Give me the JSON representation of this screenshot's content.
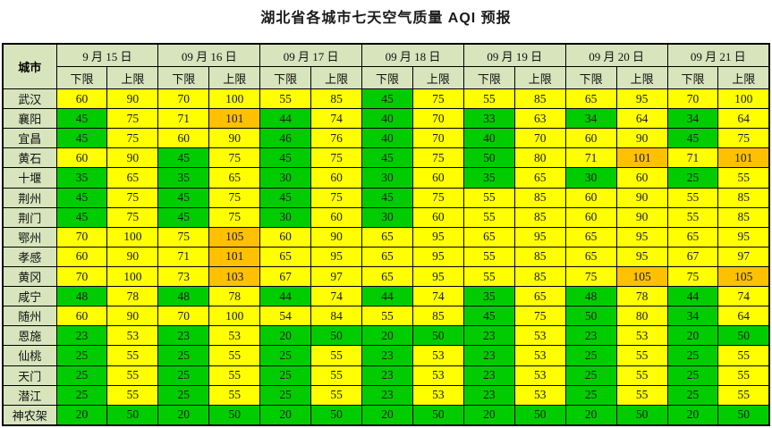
{
  "title": "湖北省各城市七天空气质量 AQI 预报",
  "table": {
    "corner_header": "城市",
    "date_headers": [
      "9 月 15 日",
      "09 月 16 日",
      "09 月 17 日",
      "09 月 18 日",
      "09 月 19 日",
      "09 月 20 日",
      "09 月 21 日"
    ],
    "sub_headers": [
      "下限",
      "上限"
    ],
    "rows": [
      {
        "city": "武汉",
        "values": [
          60,
          90,
          70,
          100,
          55,
          85,
          45,
          75,
          55,
          85,
          65,
          95,
          70,
          100
        ]
      },
      {
        "city": "襄阳",
        "values": [
          45,
          75,
          71,
          101,
          44,
          74,
          40,
          70,
          33,
          63,
          34,
          64,
          34,
          64
        ]
      },
      {
        "city": "宜昌",
        "values": [
          45,
          75,
          60,
          90,
          46,
          76,
          40,
          70,
          40,
          70,
          60,
          90,
          45,
          75
        ]
      },
      {
        "city": "黄石",
        "values": [
          60,
          90,
          45,
          75,
          45,
          75,
          45,
          75,
          50,
          80,
          71,
          101,
          71,
          101
        ]
      },
      {
        "city": "十堰",
        "values": [
          35,
          65,
          35,
          65,
          30,
          60,
          30,
          60,
          35,
          65,
          30,
          60,
          25,
          55
        ]
      },
      {
        "city": "荆州",
        "values": [
          45,
          75,
          45,
          75,
          45,
          75,
          45,
          75,
          55,
          85,
          60,
          90,
          55,
          85
        ]
      },
      {
        "city": "荆门",
        "values": [
          45,
          75,
          45,
          75,
          30,
          60,
          30,
          60,
          55,
          85,
          60,
          90,
          55,
          85
        ]
      },
      {
        "city": "鄂州",
        "values": [
          70,
          100,
          75,
          105,
          60,
          90,
          65,
          95,
          65,
          95,
          65,
          95,
          65,
          95
        ]
      },
      {
        "city": "孝感",
        "values": [
          60,
          90,
          71,
          101,
          65,
          95,
          65,
          95,
          55,
          85,
          65,
          95,
          67,
          97
        ]
      },
      {
        "city": "黄冈",
        "values": [
          70,
          100,
          73,
          103,
          67,
          97,
          65,
          95,
          55,
          85,
          75,
          105,
          75,
          105
        ]
      },
      {
        "city": "咸宁",
        "values": [
          48,
          78,
          48,
          78,
          44,
          74,
          44,
          74,
          35,
          65,
          48,
          78,
          44,
          74
        ]
      },
      {
        "city": "随州",
        "values": [
          60,
          90,
          70,
          100,
          54,
          84,
          55,
          85,
          45,
          75,
          50,
          80,
          34,
          64
        ]
      },
      {
        "city": "恩施",
        "values": [
          23,
          53,
          23,
          53,
          20,
          50,
          20,
          50,
          23,
          53,
          23,
          53,
          20,
          50
        ]
      },
      {
        "city": "仙桃",
        "values": [
          25,
          55,
          25,
          55,
          25,
          55,
          23,
          53,
          23,
          53,
          25,
          55,
          25,
          55
        ]
      },
      {
        "city": "天门",
        "values": [
          25,
          55,
          25,
          55,
          25,
          55,
          23,
          53,
          23,
          53,
          25,
          55,
          25,
          55
        ]
      },
      {
        "city": "潜江",
        "values": [
          25,
          55,
          25,
          55,
          25,
          55,
          23,
          53,
          23,
          53,
          25,
          55,
          25,
          55
        ]
      },
      {
        "city": "神农架",
        "values": [
          20,
          50,
          20,
          50,
          20,
          50,
          20,
          50,
          20,
          50,
          20,
          50,
          20,
          50
        ]
      }
    ],
    "colors": {
      "header_bg": "#d7e4bc",
      "good": "#00cc00",
      "moderate": "#ffff00",
      "unhealthy": "#ffc000"
    },
    "color_rule": {
      "good_max": 50,
      "moderate_max": 100
    }
  }
}
